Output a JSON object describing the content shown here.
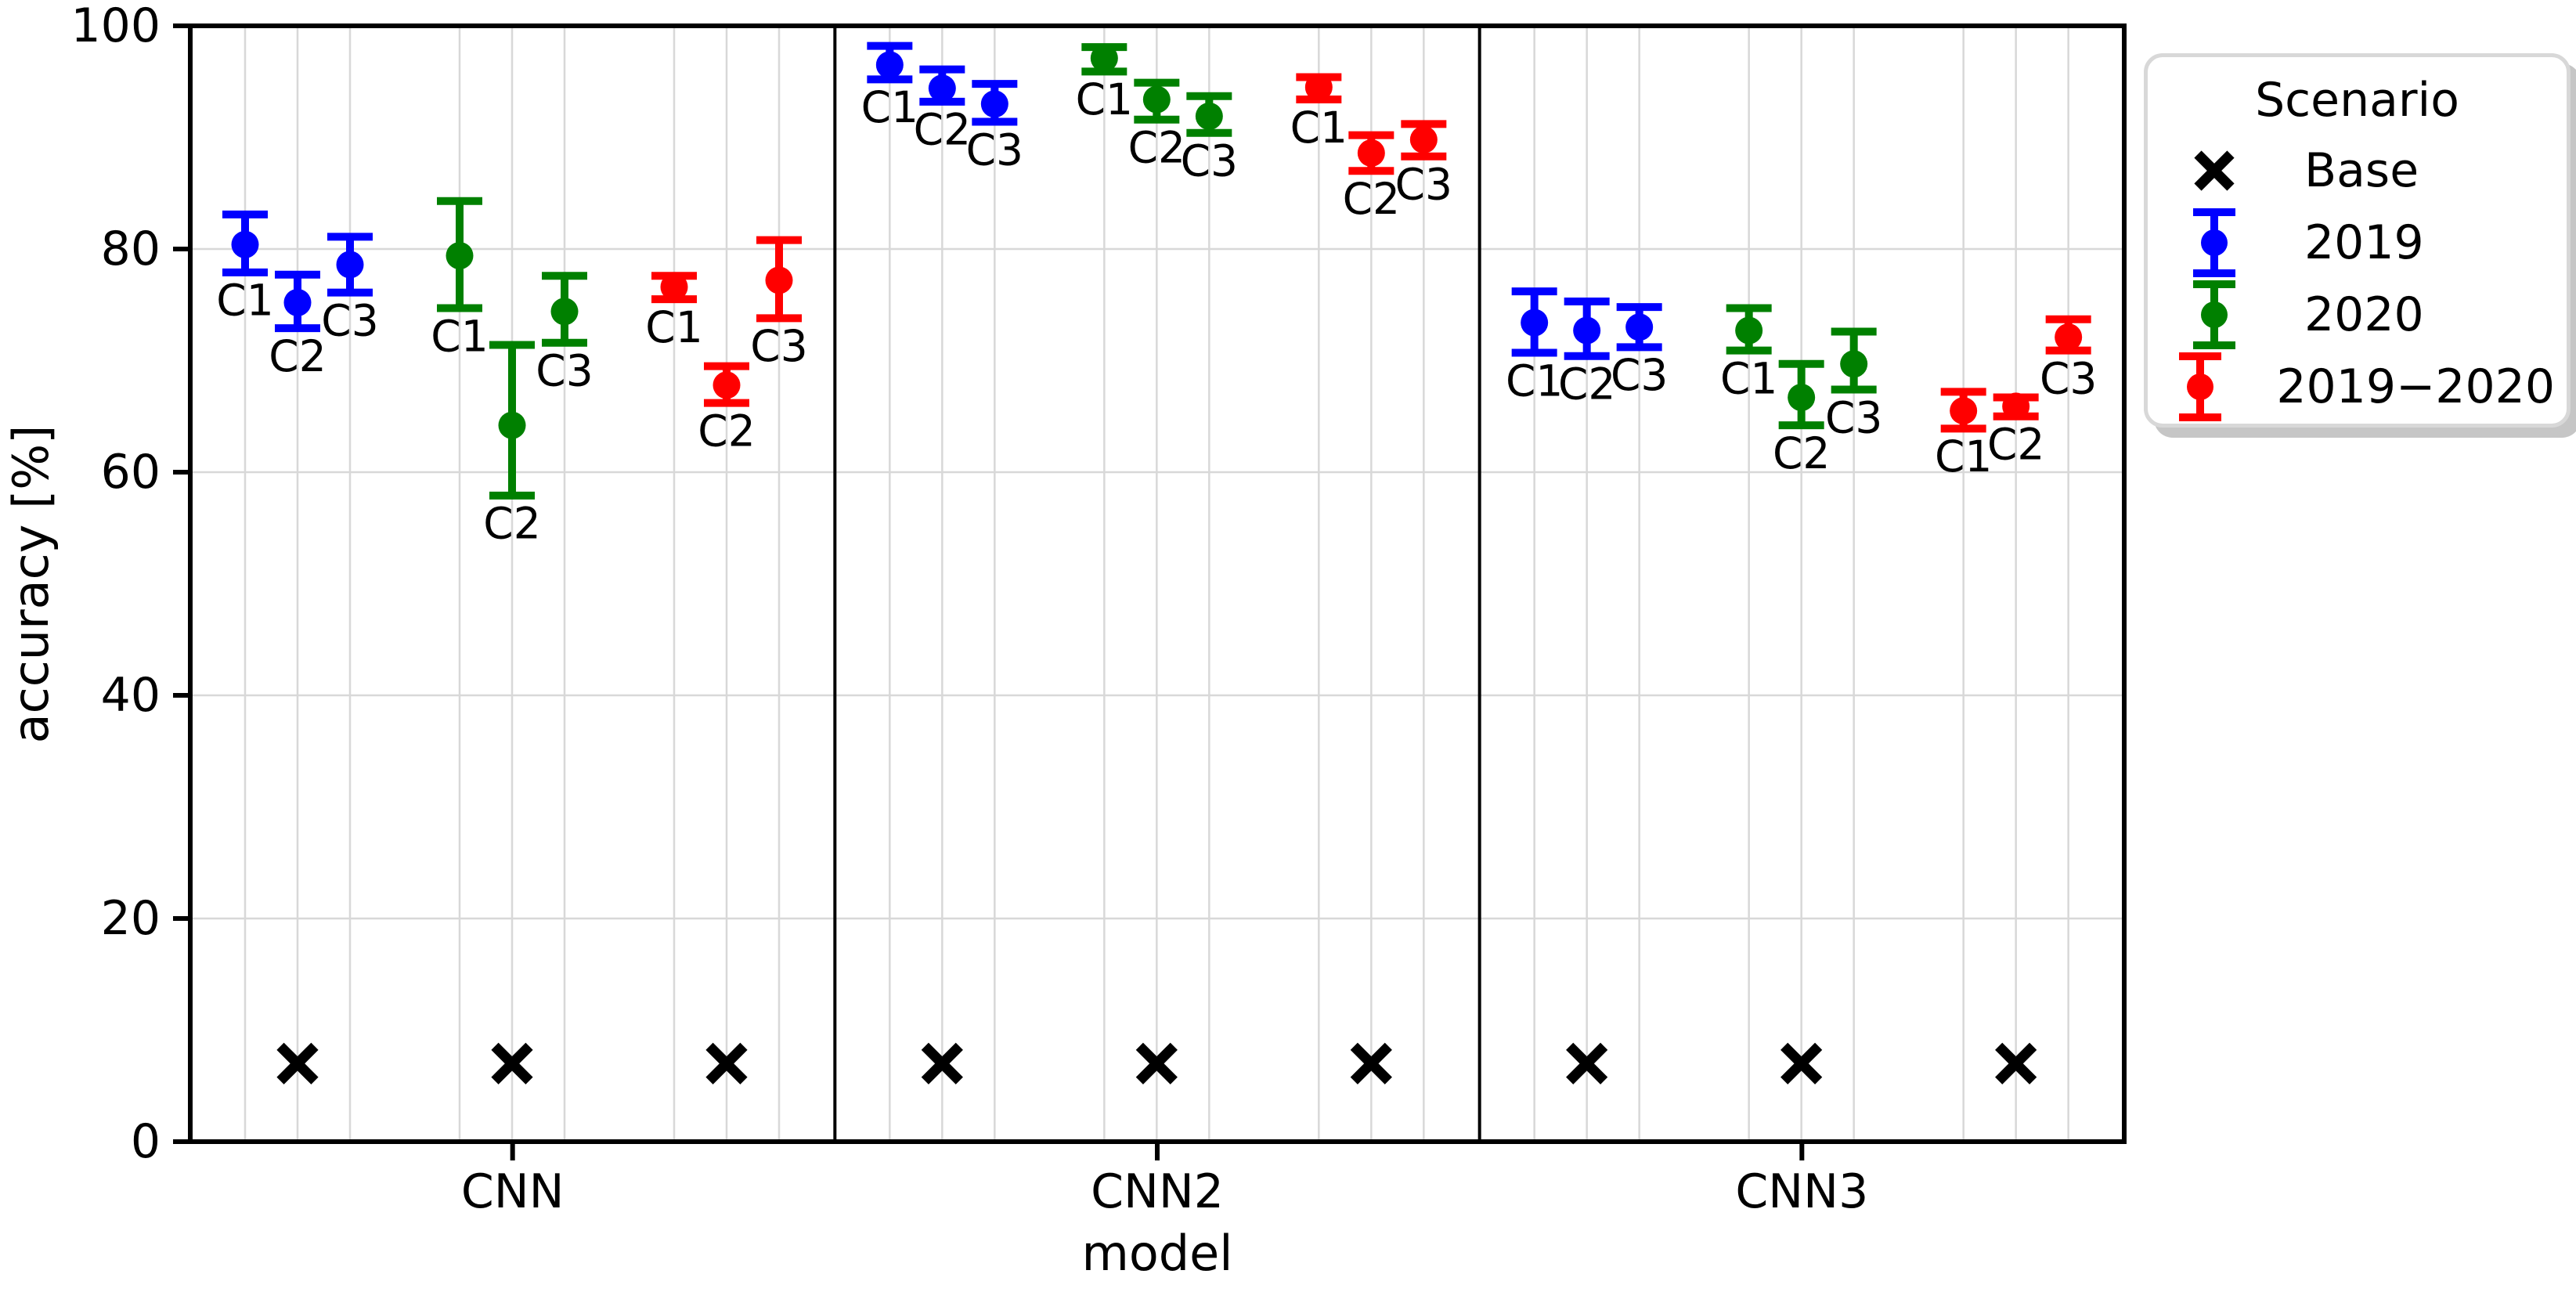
{
  "chart_data": {
    "type": "scatter",
    "subtype": "errorbar-scatter",
    "title": "",
    "xlabel": "model",
    "ylabel": "accuracy [%]",
    "ylim": [
      0,
      100
    ],
    "yticks": [
      0,
      20,
      40,
      60,
      80,
      100
    ],
    "grid": {
      "show": true,
      "color": "#d8d8d8"
    },
    "models": [
      "CNN",
      "CNN2",
      "CNN3"
    ],
    "conditions": [
      "C1",
      "C2",
      "C3"
    ],
    "legend": {
      "title": "Scenario",
      "position": "upper right",
      "entries": [
        {
          "name": "Base",
          "marker": "x",
          "color": "#000000"
        },
        {
          "name": "2019",
          "marker": "errorbar",
          "color": "#0000ff"
        },
        {
          "name": "2020",
          "marker": "errorbar",
          "color": "#008000"
        },
        {
          "name": "2019−2020",
          "marker": "errorbar",
          "color": "#ff0000"
        }
      ]
    },
    "scenarios": [
      {
        "name": "2019",
        "color": "#0000ff"
      },
      {
        "name": "2020",
        "color": "#008000"
      },
      {
        "name": "2019−2020",
        "color": "#ff0000"
      }
    ],
    "series": [
      {
        "model": "CNN",
        "scenario": "2019",
        "points": [
          {
            "label": "C1",
            "value": 80.4,
            "lo": 77.9,
            "hi": 83.1
          },
          {
            "label": "C2",
            "value": 75.2,
            "lo": 72.9,
            "hi": 77.7
          },
          {
            "label": "C3",
            "value": 78.6,
            "lo": 76.1,
            "hi": 81.1
          }
        ]
      },
      {
        "model": "CNN",
        "scenario": "2020",
        "points": [
          {
            "label": "C1",
            "value": 79.4,
            "lo": 74.7,
            "hi": 84.3
          },
          {
            "label": "C2",
            "value": 64.2,
            "lo": 57.9,
            "hi": 71.4
          },
          {
            "label": "C3",
            "value": 74.4,
            "lo": 71.6,
            "hi": 77.6
          }
        ]
      },
      {
        "model": "CNN",
        "scenario": "2019−2020",
        "points": [
          {
            "label": "C1",
            "value": 76.6,
            "lo": 75.5,
            "hi": 77.6
          },
          {
            "label": "C2",
            "value": 67.8,
            "lo": 66.2,
            "hi": 69.5
          },
          {
            "label": "C3",
            "value": 77.2,
            "lo": 73.8,
            "hi": 80.8
          }
        ]
      },
      {
        "model": "CNN2",
        "scenario": "2019",
        "points": [
          {
            "label": "C1",
            "value": 96.5,
            "lo": 95.2,
            "hi": 98.2
          },
          {
            "label": "C2",
            "value": 94.4,
            "lo": 93.2,
            "hi": 96.1
          },
          {
            "label": "C3",
            "value": 93.0,
            "lo": 91.4,
            "hi": 94.8
          }
        ]
      },
      {
        "model": "CNN2",
        "scenario": "2020",
        "points": [
          {
            "label": "C1",
            "value": 97.1,
            "lo": 95.9,
            "hi": 98.1
          },
          {
            "label": "C2",
            "value": 93.4,
            "lo": 91.6,
            "hi": 94.9
          },
          {
            "label": "C3",
            "value": 91.9,
            "lo": 90.4,
            "hi": 93.7
          }
        ]
      },
      {
        "model": "CNN2",
        "scenario": "2019−2020",
        "points": [
          {
            "label": "C1",
            "value": 94.5,
            "lo": 93.4,
            "hi": 95.4
          },
          {
            "label": "C2",
            "value": 88.6,
            "lo": 87.0,
            "hi": 90.2
          },
          {
            "label": "C3",
            "value": 89.8,
            "lo": 88.3,
            "hi": 91.2
          }
        ]
      },
      {
        "model": "CNN3",
        "scenario": "2019",
        "points": [
          {
            "label": "C1",
            "value": 73.4,
            "lo": 70.7,
            "hi": 76.2
          },
          {
            "label": "C2",
            "value": 72.7,
            "lo": 70.4,
            "hi": 75.3
          },
          {
            "label": "C3",
            "value": 73.0,
            "lo": 71.2,
            "hi": 74.8
          }
        ]
      },
      {
        "model": "CNN3",
        "scenario": "2020",
        "points": [
          {
            "label": "C1",
            "value": 72.7,
            "lo": 70.9,
            "hi": 74.7
          },
          {
            "label": "C2",
            "value": 66.7,
            "lo": 64.2,
            "hi": 69.7
          },
          {
            "label": "C3",
            "value": 69.7,
            "lo": 67.4,
            "hi": 72.6
          }
        ]
      },
      {
        "model": "CNN3",
        "scenario": "2019−2020",
        "points": [
          {
            "label": "C1",
            "value": 65.5,
            "lo": 63.9,
            "hi": 67.2
          },
          {
            "label": "C2",
            "value": 65.9,
            "lo": 65.0,
            "hi": 66.7
          },
          {
            "label": "C3",
            "value": 72.1,
            "lo": 70.9,
            "hi": 73.7
          }
        ]
      }
    ],
    "base_series": [
      {
        "model": "CNN",
        "scenario": "Base",
        "values": [
          7,
          7,
          7
        ]
      },
      {
        "model": "CNN2",
        "scenario": "Base",
        "values": [
          7,
          7,
          7
        ]
      },
      {
        "model": "CNN3",
        "scenario": "Base",
        "values": [
          7,
          7,
          7
        ]
      }
    ]
  }
}
